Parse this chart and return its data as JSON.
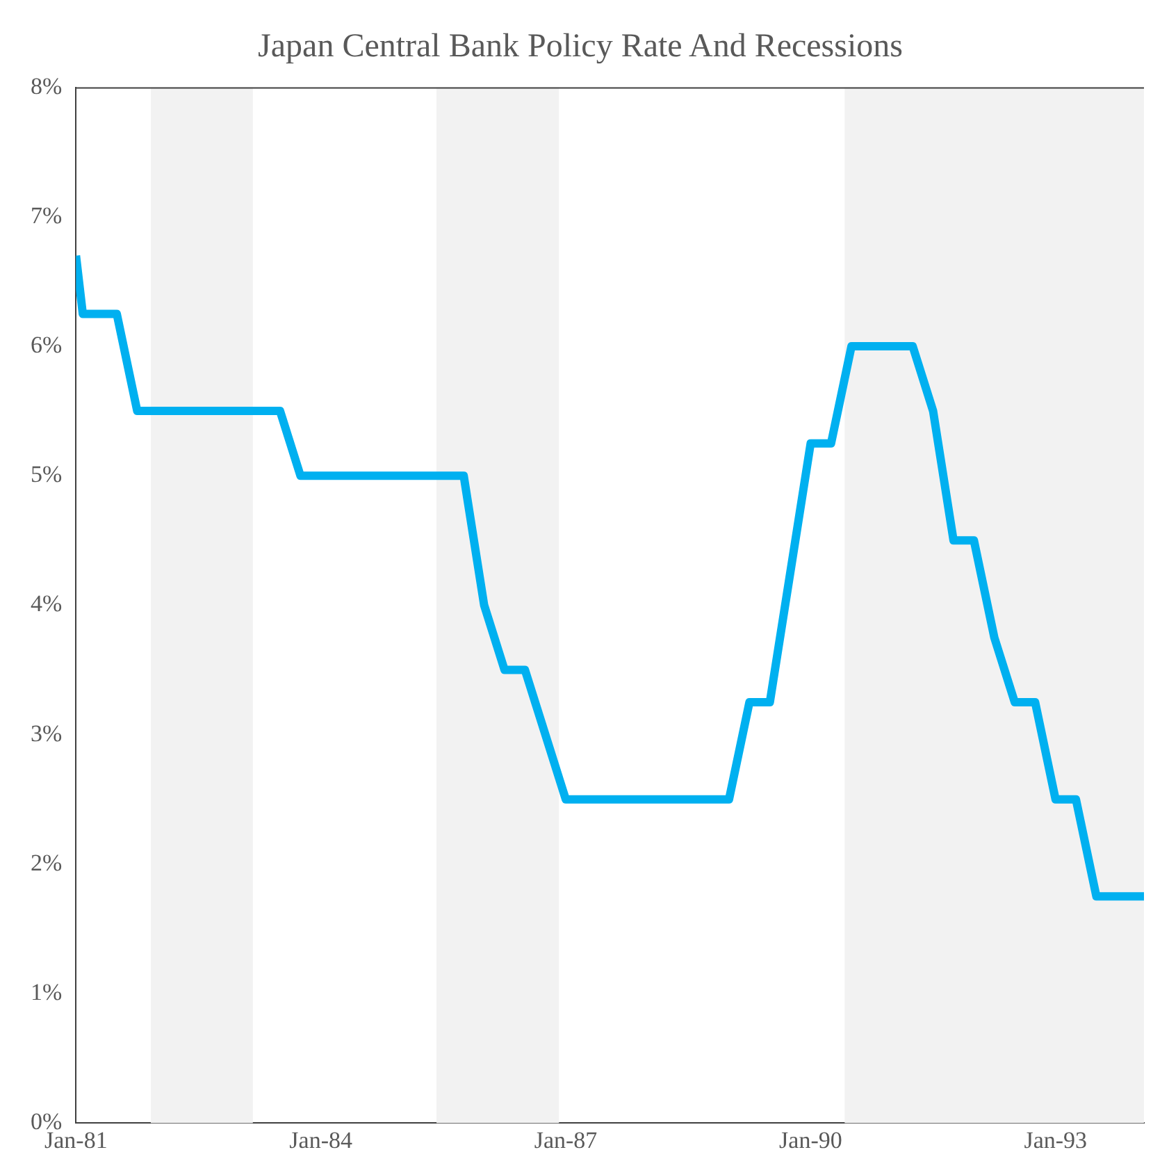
{
  "chart_data": {
    "type": "line",
    "title": "Japan Central Bank Policy Rate And Recessions",
    "x": [
      "1981-01",
      "1981-02",
      "1981-07",
      "1981-10",
      "1983-07",
      "1983-10",
      "1985-10",
      "1986-01",
      "1986-04",
      "1986-07",
      "1987-01",
      "1989-01",
      "1989-04",
      "1989-07",
      "1990-01",
      "1990-04",
      "1990-07",
      "1991-04",
      "1991-07",
      "1991-10",
      "1992-01",
      "1992-04",
      "1992-07",
      "1992-10",
      "1993-01",
      "1993-04",
      "1993-07",
      "1994-02"
    ],
    "series": [
      {
        "color": "#00b0f0",
        "values": [
          6.7,
          6.25,
          6.25,
          5.5,
          5.5,
          5.0,
          5.0,
          4.0,
          3.5,
          3.5,
          2.5,
          2.5,
          3.25,
          3.25,
          5.25,
          5.25,
          6.0,
          6.0,
          5.5,
          4.5,
          4.5,
          3.75,
          3.25,
          3.25,
          2.5,
          2.5,
          1.75,
          1.75
        ]
      }
    ],
    "xlim": [
      "1981-01",
      "1994-02"
    ],
    "xticks": [
      {
        "value": "1981-01",
        "label": "Jan-81"
      },
      {
        "value": "1984-01",
        "label": "Jan-84"
      },
      {
        "value": "1987-01",
        "label": "Jan-87"
      },
      {
        "value": "1990-01",
        "label": "Jan-90"
      },
      {
        "value": "1993-01",
        "label": "Jan-93"
      }
    ],
    "ylim": [
      0,
      8
    ],
    "yticks": [
      {
        "value": 0,
        "label": "0%"
      },
      {
        "value": 1,
        "label": "1%"
      },
      {
        "value": 2,
        "label": "2%"
      },
      {
        "value": 3,
        "label": "3%"
      },
      {
        "value": 4,
        "label": "4%"
      },
      {
        "value": 5,
        "label": "5%"
      },
      {
        "value": 6,
        "label": "6%"
      },
      {
        "value": 7,
        "label": "7%"
      },
      {
        "value": 8,
        "label": "8%"
      }
    ],
    "bands": [
      {
        "axis": "x",
        "from": "1981-12",
        "to": "1983-03",
        "color": "#f2f2f2"
      },
      {
        "axis": "x",
        "from": "1985-06",
        "to": "1986-12",
        "color": "#f2f2f2"
      },
      {
        "axis": "x",
        "from": "1990-06",
        "to": "1994-02",
        "color": "#f2f2f2"
      }
    ],
    "grid": false,
    "legend": false,
    "marker": "none",
    "line_style": "solid"
  }
}
